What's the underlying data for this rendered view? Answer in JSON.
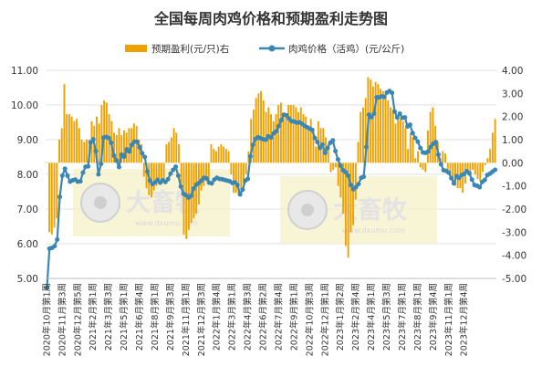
{
  "chart_data": {
    "type": "bar+line",
    "title": "全国每周肉鸡价格和预期盈利走势图",
    "legend": {
      "bar": "预期盈利(元/只)右",
      "line": "肉鸡价格（活鸡）(元/公斤)",
      "placement": "top-center"
    },
    "watermark": {
      "brand": "大畜牧",
      "url": "www.dxumu.com"
    },
    "y_left": {
      "range": [
        5,
        11
      ],
      "ticks": [
        "5.00",
        "6.00",
        "7.00",
        "8.00",
        "9.00",
        "10.00",
        "11.00"
      ]
    },
    "y_right": {
      "range": [
        -5,
        4
      ],
      "ticks": [
        "-5.00",
        "-4.00",
        "-3.00",
        "-2.00",
        "-1.00",
        "0.00",
        "1.00",
        "2.00",
        "3.00",
        "4.00"
      ]
    },
    "x_labels": [
      "2020年10月第1周",
      "2020年11月第3周",
      "2020年12月第5周",
      "2021年2月第1周",
      "2021年3月第3周",
      "2021年5月第1周",
      "2021年6月第4周",
      "2021年8月第1周",
      "2021年9月第3周",
      "2021年11月第1周",
      "2021年12月第3周",
      "2022年1月第4周",
      "2022年3月第1周",
      "2022年4月第3周",
      "2022年6月第2周",
      "2022年7月第4周",
      "2022年9月第1周",
      "2022年10月第3周",
      "2022年12月第1周",
      "2023年1月第2周",
      "2023年2月第4周",
      "2023年4月第1周",
      "2023年5月第3周",
      "2023年7月第1周",
      "2023年8月第1周",
      "2023年9月第4周",
      "2023年11月第1周",
      "2023年12月第4周"
    ],
    "label_every": 6,
    "grid": true,
    "series": [
      {
        "name": "肉鸡价格（活鸡）(元/公斤)",
        "axis": "left",
        "color": "#3a87b3",
        "values": [
          4.73,
          5.86,
          5.88,
          5.93,
          6.12,
          7.35,
          7.96,
          8.16,
          7.96,
          7.79,
          7.83,
          7.85,
          7.79,
          7.8,
          8.05,
          8.22,
          8.23,
          8.92,
          9.01,
          8.67,
          8.0,
          8.3,
          9.06,
          9.08,
          9.05,
          8.91,
          8.54,
          8.4,
          8.21,
          8.57,
          8.51,
          8.72,
          8.66,
          8.85,
          8.94,
          8.94,
          8.78,
          8.61,
          8.5,
          8.08,
          7.82,
          7.72,
          7.77,
          7.84,
          7.76,
          7.83,
          7.78,
          7.86,
          8.02,
          8.13,
          8.22,
          7.96,
          7.65,
          7.44,
          7.4,
          7.33,
          7.38,
          7.59,
          7.7,
          7.75,
          7.82,
          7.9,
          7.88,
          7.76,
          7.74,
          7.85,
          7.9,
          7.87,
          7.86,
          7.84,
          7.82,
          7.8,
          7.75,
          7.77,
          7.69,
          7.42,
          7.56,
          7.82,
          7.87,
          8.52,
          8.85,
          9.02,
          9.07,
          9.04,
          9.01,
          9.0,
          9.1,
          9.06,
          9.18,
          9.24,
          9.39,
          9.56,
          9.72,
          9.7,
          9.61,
          9.53,
          9.52,
          9.49,
          9.5,
          9.46,
          9.4,
          9.36,
          9.32,
          9.28,
          9.05,
          8.93,
          8.76,
          8.86,
          8.62,
          8.76,
          8.91,
          8.98,
          8.67,
          8.43,
          8.25,
          8.12,
          8.06,
          7.96,
          7.69,
          7.57,
          7.63,
          7.72,
          7.9,
          7.93,
          8.79,
          9.72,
          9.65,
          9.75,
          10.22,
          10.22,
          10.25,
          10.23,
          10.36,
          10.4,
          10.35,
          9.81,
          9.64,
          9.75,
          9.63,
          9.64,
          9.38,
          9.43,
          9.19,
          9.05,
          8.94,
          8.76,
          8.63,
          8.62,
          8.66,
          8.79,
          8.88,
          8.93,
          8.57,
          8.29,
          8.12,
          8.1,
          8.05,
          7.89,
          7.74,
          7.95,
          7.9,
          7.98,
          8.01,
          8.09,
          8.03,
          7.85,
          7.69,
          7.67,
          7.63,
          7.78,
          7.84,
          7.98,
          8.02,
          8.08,
          8.13
        ],
        "value_interval": 1,
        "note": "weekly values, Oct 2020 – Dec 2023"
      },
      {
        "name": "预期盈利(元/只)右",
        "axis": "right",
        "color": "#f0a000",
        "values": [
          0.0,
          -3.0,
          -3.1,
          -2.8,
          -2.4,
          1.0,
          1.5,
          3.4,
          2.1,
          2.1,
          2.0,
          1.8,
          1.9,
          1.5,
          1.0,
          0.9,
          1.0,
          1.0,
          1.8,
          1.6,
          2.0,
          1.7,
          2.5,
          2.7,
          2.6,
          2.1,
          1.8,
          1.3,
          1.2,
          1.5,
          1.2,
          1.4,
          1.3,
          1.5,
          1.5,
          1.7,
          1.6,
          1.0,
          0.8,
          -0.6,
          -1.1,
          -1.4,
          -1.5,
          -1.2,
          -1.0,
          -0.9,
          -0.8,
          -0.7,
          0.8,
          0.9,
          1.1,
          1.5,
          1.3,
          0.8,
          -0.9,
          -3.1,
          -3.3,
          -2.9,
          -2.6,
          -2.4,
          -2.2,
          -1.8,
          -1.2,
          -1.0,
          -0.8,
          -0.9,
          0.8,
          0.6,
          0.5,
          0.7,
          0.8,
          0.7,
          0.6,
          0.5,
          -0.5,
          -1.3,
          -1.3,
          -1.4,
          -1.2,
          -0.9,
          -0.5,
          0.5,
          1.9,
          2.3,
          2.8,
          3.0,
          3.1,
          2.7,
          2.2,
          2.4,
          2.1,
          1.8,
          2.1,
          2.5,
          2.6,
          2.0,
          2.0,
          2.5,
          2.5,
          2.5,
          2.4,
          2.2,
          2.4,
          2.1,
          2.0,
          1.5,
          1.9,
          1.5,
          0.7,
          1.8,
          1.5,
          1.5,
          1.1,
          0.8,
          -0.4,
          -0.3,
          -0.2,
          -1.0,
          -1.5,
          -2.2,
          -3.6,
          -4.1,
          -3.0,
          -2.7,
          -1.6,
          0.9,
          2.2,
          2.4,
          2.8,
          3.7,
          3.6,
          3.3,
          3.5,
          3.4,
          3.2,
          3.1,
          2.9,
          2.7,
          2.4,
          2.3,
          1.7,
          2.0,
          1.9,
          1.8,
          1.5,
          0.6,
          1.3,
          1.1,
          0.2,
          0.5,
          -0.2,
          -0.3,
          -0.4,
          1.4,
          2.2,
          2.4,
          1.6,
          0.9,
          0.2,
          0.5,
          0.4,
          -0.3,
          -0.6,
          -0.8,
          -1.0,
          -1.1,
          -1.1,
          -1.3,
          -0.9,
          -0.4,
          -0.6,
          -0.3,
          -0.5,
          -0.7,
          -0.8,
          -0.4,
          -0.1,
          0.2,
          0.6,
          1.3,
          1.9
        ],
        "value_interval": 1
      }
    ]
  }
}
